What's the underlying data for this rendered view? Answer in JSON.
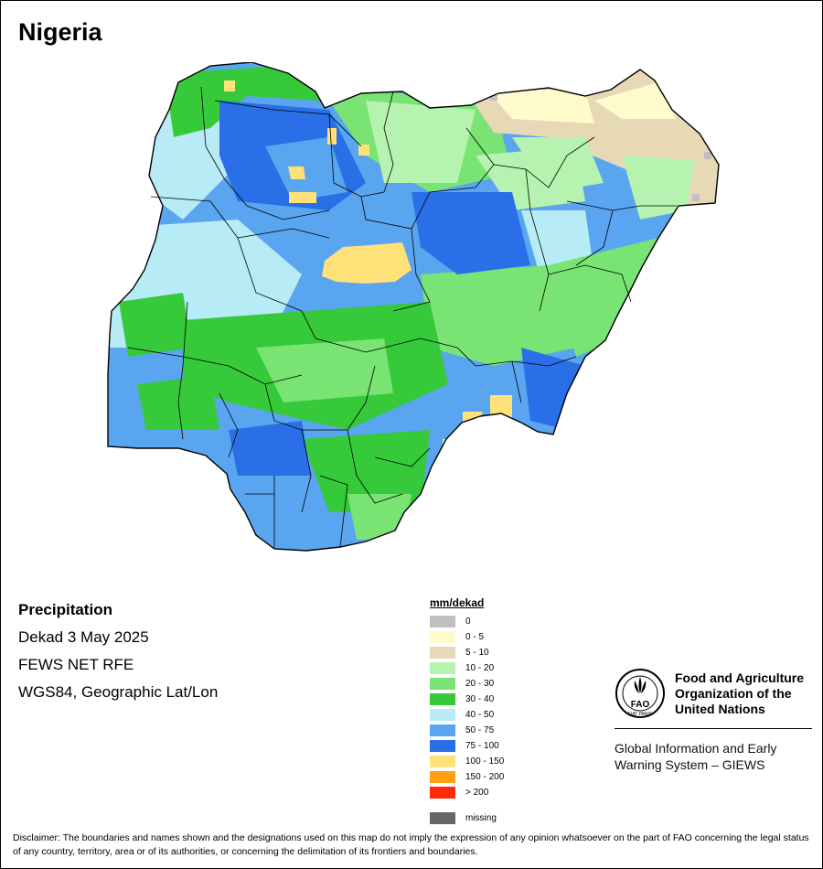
{
  "map_title": "Nigeria",
  "info": {
    "variable": "Precipitation",
    "period": "Dekad 3 May 2025",
    "source": "FEWS NET RFE",
    "projection": "WGS84, Geographic Lat/Lon"
  },
  "legend": {
    "title": "mm/dekad",
    "classes": [
      {
        "label": "0",
        "color": "#c0c0c0"
      },
      {
        "label": "0 - 5",
        "color": "#fffbcc"
      },
      {
        "label": "5 - 10",
        "color": "#e8d9b6"
      },
      {
        "label": "10 - 20",
        "color": "#b6f3b0"
      },
      {
        "label": "20 - 30",
        "color": "#79e474"
      },
      {
        "label": "30 - 40",
        "color": "#36c93a"
      },
      {
        "label": "40 - 50",
        "color": "#b7ecf7"
      },
      {
        "label": "50 - 75",
        "color": "#5aa5ef"
      },
      {
        "label": "75 - 100",
        "color": "#2a6fe8"
      },
      {
        "label": "100 - 150",
        "color": "#ffe179"
      },
      {
        "label": "150 - 200",
        "color": "#ff9f14"
      },
      {
        "label": "> 200",
        "color": "#ff2a0a"
      }
    ],
    "missing": {
      "label": "missing",
      "color": "#666666"
    }
  },
  "fao": {
    "line1": "Food and Agriculture",
    "line2": "Organization of the",
    "line3": "United Nations",
    "logo_letters": "FAO",
    "logo_motto": "FIAT PANIS",
    "giews1": "Global Information and Early",
    "giews2": "Warning System – GIEWS"
  },
  "disclaimer": "Disclaimer: The boundaries and names shown and the designations used on this map do not imply the expression of any opinion whatsoever on the part of FAO concerning the legal status of any country, territory, area or of its authorities, or concerning the delimitation of its frontiers and boundaries."
}
